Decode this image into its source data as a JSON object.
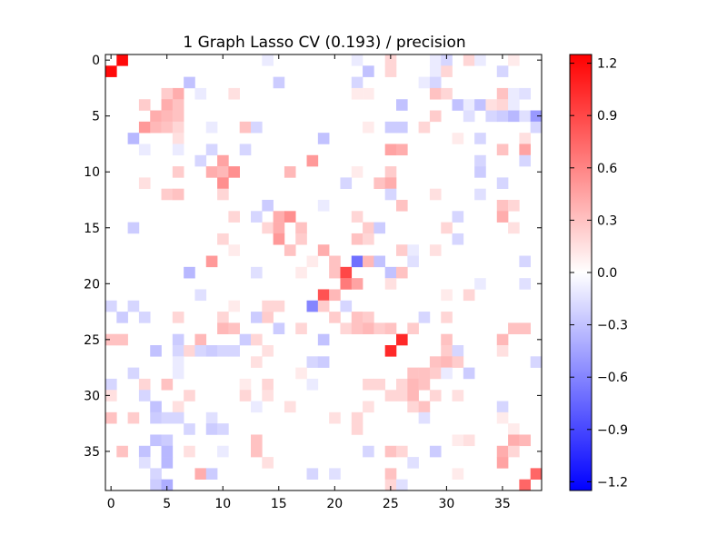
{
  "chart_data": {
    "type": "heatmap",
    "title": "1 Graph Lasso CV (0.193) / precision",
    "xlabel": "",
    "ylabel": "",
    "rows": 39,
    "cols": 39,
    "x_ticks": [
      0,
      5,
      10,
      15,
      20,
      25,
      30,
      35
    ],
    "y_ticks": [
      0,
      5,
      10,
      15,
      20,
      25,
      30,
      35
    ],
    "x_tick_labels": [
      "0",
      "5",
      "10",
      "15",
      "20",
      "25",
      "30",
      "35"
    ],
    "y_tick_labels": [
      "0",
      "5",
      "10",
      "15",
      "20",
      "25",
      "30",
      "35"
    ],
    "colormap": "bwr",
    "vmin": -1.25,
    "vmax": 1.25,
    "colorbar": {
      "ticks": [
        1.2,
        0.9,
        0.6,
        0.3,
        0.0,
        -0.3,
        -0.6,
        -0.9,
        -1.2
      ],
      "tick_labels": [
        "1.2",
        "0.9",
        "0.6",
        "0.3",
        "0.0",
        "−0.3",
        "−0.6",
        "−0.9",
        "−1.2"
      ],
      "color_high": "#ff0000",
      "color_mid": "#ffffff",
      "color_low": "#0000ff"
    },
    "grid": false,
    "default_value": 0.0,
    "cells": [
      [
        0,
        1,
        1.2
      ],
      [
        1,
        0,
        1.2
      ],
      [
        0,
        14,
        -0.1
      ],
      [
        0,
        22,
        -0.1
      ],
      [
        0,
        25,
        0.2
      ],
      [
        0,
        29,
        -0.1
      ],
      [
        0,
        30,
        -0.2
      ],
      [
        0,
        32,
        0.2
      ],
      [
        0,
        33,
        -0.1
      ],
      [
        0,
        36,
        0.1
      ],
      [
        1,
        23,
        -0.3
      ],
      [
        1,
        25,
        0.2
      ],
      [
        1,
        29,
        -0.1
      ],
      [
        1,
        30,
        0.2
      ],
      [
        1,
        35,
        -0.2
      ],
      [
        2,
        7,
        -0.3
      ],
      [
        2,
        15,
        -0.25
      ],
      [
        2,
        22,
        -0.2
      ],
      [
        2,
        28,
        -0.1
      ],
      [
        2,
        29,
        -0.2
      ],
      [
        3,
        6,
        0.4
      ],
      [
        3,
        5,
        0.25
      ],
      [
        3,
        8,
        -0.1
      ],
      [
        3,
        11,
        0.15
      ],
      [
        3,
        22,
        0.1
      ],
      [
        3,
        23,
        0.1
      ],
      [
        3,
        29,
        0.3
      ],
      [
        3,
        30,
        0.2
      ],
      [
        3,
        35,
        0.3
      ],
      [
        3,
        36,
        -0.1
      ],
      [
        3,
        37,
        -0.15
      ],
      [
        4,
        3,
        0.25
      ],
      [
        4,
        5,
        0.4
      ],
      [
        4,
        6,
        0.3
      ],
      [
        4,
        26,
        -0.3
      ],
      [
        4,
        31,
        -0.3
      ],
      [
        4,
        32,
        -0.1
      ],
      [
        4,
        33,
        -0.3
      ],
      [
        4,
        34,
        0.15
      ],
      [
        4,
        35,
        0.2
      ],
      [
        4,
        36,
        -0.1
      ],
      [
        5,
        4,
        0.4
      ],
      [
        5,
        5,
        0.35
      ],
      [
        5,
        6,
        0.3
      ],
      [
        5,
        29,
        0.25
      ],
      [
        5,
        32,
        -0.15
      ],
      [
        5,
        34,
        -0.2
      ],
      [
        5,
        35,
        -0.25
      ],
      [
        5,
        36,
        -0.35
      ],
      [
        5,
        37,
        -0.15
      ],
      [
        5,
        38,
        -0.5
      ],
      [
        6,
        3,
        0.5
      ],
      [
        6,
        4,
        0.35
      ],
      [
        6,
        5,
        0.3
      ],
      [
        6,
        6,
        0.2
      ],
      [
        6,
        9,
        -0.1
      ],
      [
        6,
        12,
        0.3
      ],
      [
        6,
        13,
        -0.2
      ],
      [
        6,
        23,
        0.1
      ],
      [
        6,
        25,
        -0.25
      ],
      [
        6,
        26,
        -0.25
      ],
      [
        6,
        28,
        0.2
      ],
      [
        6,
        38,
        -0.2
      ],
      [
        7,
        2,
        -0.35
      ],
      [
        7,
        6,
        0.15
      ],
      [
        7,
        19,
        -0.3
      ],
      [
        7,
        31,
        0.1
      ],
      [
        7,
        33,
        -0.2
      ],
      [
        7,
        37,
        0.15
      ],
      [
        8,
        3,
        -0.1
      ],
      [
        8,
        6,
        -0.1
      ],
      [
        8,
        9,
        -0.2
      ],
      [
        8,
        12,
        -0.2
      ],
      [
        8,
        25,
        0.45
      ],
      [
        8,
        26,
        0.4
      ],
      [
        8,
        35,
        0.3
      ],
      [
        8,
        37,
        0.45
      ],
      [
        9,
        8,
        -0.2
      ],
      [
        9,
        10,
        0.45
      ],
      [
        9,
        18,
        0.5
      ],
      [
        9,
        33,
        -0.2
      ],
      [
        9,
        37,
        -0.2
      ],
      [
        10,
        6,
        0.25
      ],
      [
        10,
        9,
        0.4
      ],
      [
        10,
        10,
        0.35
      ],
      [
        10,
        11,
        0.55
      ],
      [
        10,
        16,
        0.35
      ],
      [
        10,
        22,
        0.1
      ],
      [
        10,
        25,
        0.25
      ],
      [
        10,
        33,
        -0.25
      ],
      [
        11,
        3,
        0.15
      ],
      [
        11,
        10,
        0.55
      ],
      [
        11,
        21,
        -0.2
      ],
      [
        11,
        24,
        0.3
      ],
      [
        11,
        25,
        0.4
      ],
      [
        11,
        35,
        -0.2
      ],
      [
        12,
        5,
        0.25
      ],
      [
        12,
        6,
        0.3
      ],
      [
        12,
        10,
        0.2
      ],
      [
        12,
        25,
        -0.2
      ],
      [
        12,
        29,
        0.15
      ],
      [
        12,
        33,
        -0.15
      ],
      [
        13,
        14,
        -0.25
      ],
      [
        13,
        19,
        -0.1
      ],
      [
        13,
        26,
        0.3
      ],
      [
        13,
        35,
        0.3
      ],
      [
        13,
        36,
        0.2
      ],
      [
        14,
        11,
        0.2
      ],
      [
        14,
        13,
        -0.2
      ],
      [
        14,
        15,
        0.4
      ],
      [
        14,
        16,
        0.55
      ],
      [
        14,
        22,
        0.2
      ],
      [
        14,
        31,
        -0.2
      ],
      [
        14,
        35,
        0.4
      ],
      [
        15,
        2,
        -0.25
      ],
      [
        15,
        14,
        0.2
      ],
      [
        15,
        15,
        0.4
      ],
      [
        15,
        17,
        0.3
      ],
      [
        15,
        23,
        0.25
      ],
      [
        15,
        24,
        -0.25
      ],
      [
        15,
        30,
        0.2
      ],
      [
        15,
        36,
        0.15
      ],
      [
        16,
        10,
        0.2
      ],
      [
        16,
        15,
        0.5
      ],
      [
        16,
        17,
        0.25
      ],
      [
        16,
        22,
        0.3
      ],
      [
        16,
        23,
        0.2
      ],
      [
        16,
        31,
        -0.2
      ],
      [
        17,
        11,
        0.1
      ],
      [
        17,
        16,
        0.3
      ],
      [
        17,
        19,
        0.4
      ],
      [
        17,
        26,
        0.25
      ],
      [
        17,
        27,
        -0.1
      ],
      [
        17,
        29,
        0.15
      ],
      [
        18,
        9,
        0.5
      ],
      [
        18,
        18,
        0.1
      ],
      [
        18,
        20,
        0.3
      ],
      [
        18,
        22,
        -0.7
      ],
      [
        18,
        23,
        0.35
      ],
      [
        18,
        24,
        -0.3
      ],
      [
        18,
        27,
        -0.15
      ],
      [
        18,
        37,
        -0.2
      ],
      [
        19,
        7,
        -0.35
      ],
      [
        19,
        13,
        -0.15
      ],
      [
        19,
        17,
        0.1
      ],
      [
        19,
        20,
        0.3
      ],
      [
        19,
        21,
        0.9
      ],
      [
        19,
        25,
        -0.3
      ],
      [
        19,
        26,
        0.3
      ],
      [
        20,
        21,
        0.65
      ],
      [
        20,
        22,
        0.45
      ],
      [
        20,
        25,
        0.15
      ],
      [
        20,
        33,
        -0.1
      ],
      [
        20,
        37,
        -0.15
      ],
      [
        21,
        8,
        -0.15
      ],
      [
        21,
        19,
        0.85
      ],
      [
        21,
        20,
        0.35
      ],
      [
        21,
        30,
        0.1
      ],
      [
        21,
        32,
        0.2
      ],
      [
        22,
        0,
        -0.2
      ],
      [
        22,
        2,
        -0.2
      ],
      [
        22,
        11,
        0.1
      ],
      [
        22,
        14,
        0.2
      ],
      [
        22,
        15,
        0.2
      ],
      [
        22,
        18,
        -0.6
      ],
      [
        22,
        19,
        0.25
      ],
      [
        22,
        21,
        -0.2
      ],
      [
        23,
        1,
        -0.25
      ],
      [
        23,
        3,
        -0.2
      ],
      [
        23,
        6,
        0.2
      ],
      [
        23,
        10,
        0.2
      ],
      [
        23,
        13,
        -0.25
      ],
      [
        23,
        14,
        0.25
      ],
      [
        23,
        20,
        0.25
      ],
      [
        23,
        22,
        0.3
      ],
      [
        23,
        23,
        0.25
      ],
      [
        23,
        28,
        -0.2
      ],
      [
        23,
        30,
        0.2
      ],
      [
        24,
        10,
        0.35
      ],
      [
        24,
        11,
        0.3
      ],
      [
        24,
        15,
        -0.25
      ],
      [
        24,
        17,
        0.2
      ],
      [
        24,
        21,
        0.2
      ],
      [
        24,
        22,
        0.3
      ],
      [
        24,
        23,
        0.35
      ],
      [
        24,
        24,
        0.25
      ],
      [
        24,
        25,
        0.3
      ],
      [
        24,
        27,
        0.25
      ],
      [
        24,
        36,
        0.3
      ],
      [
        24,
        37,
        0.3
      ],
      [
        25,
        0,
        0.3
      ],
      [
        25,
        1,
        0.3
      ],
      [
        25,
        6,
        -0.25
      ],
      [
        25,
        8,
        0.35
      ],
      [
        25,
        12,
        -0.25
      ],
      [
        25,
        13,
        0.2
      ],
      [
        25,
        19,
        -0.3
      ],
      [
        25,
        26,
        1.05
      ],
      [
        25,
        30,
        0.3
      ],
      [
        25,
        35,
        0.35
      ],
      [
        26,
        4,
        -0.3
      ],
      [
        26,
        6,
        -0.2
      ],
      [
        26,
        7,
        0.2
      ],
      [
        26,
        8,
        -0.2
      ],
      [
        26,
        9,
        -0.25
      ],
      [
        26,
        10,
        -0.2
      ],
      [
        26,
        11,
        -0.2
      ],
      [
        26,
        14,
        0.15
      ],
      [
        26,
        25,
        1.05
      ],
      [
        26,
        30,
        0.25
      ],
      [
        26,
        31,
        -0.2
      ],
      [
        26,
        35,
        0.15
      ],
      [
        27,
        6,
        -0.1
      ],
      [
        27,
        13,
        0.15
      ],
      [
        27,
        18,
        -0.2
      ],
      [
        27,
        19,
        -0.25
      ],
      [
        27,
        29,
        0.3
      ],
      [
        27,
        30,
        0.35
      ],
      [
        27,
        31,
        0.25
      ],
      [
        27,
        38,
        -0.2
      ],
      [
        28,
        2,
        -0.2
      ],
      [
        28,
        6,
        -0.1
      ],
      [
        28,
        17,
        0.1
      ],
      [
        28,
        27,
        0.3
      ],
      [
        28,
        28,
        0.3
      ],
      [
        28,
        29,
        0.25
      ],
      [
        28,
        30,
        -0.1
      ],
      [
        28,
        32,
        -0.25
      ],
      [
        29,
        0,
        -0.2
      ],
      [
        29,
        3,
        0.2
      ],
      [
        29,
        5,
        0.3
      ],
      [
        29,
        12,
        0.1
      ],
      [
        29,
        14,
        0.2
      ],
      [
        29,
        18,
        -0.1
      ],
      [
        29,
        23,
        0.2
      ],
      [
        29,
        24,
        0.2
      ],
      [
        29,
        26,
        0.2
      ],
      [
        29,
        27,
        0.35
      ],
      [
        29,
        28,
        0.3
      ],
      [
        30,
        0,
        0.15
      ],
      [
        30,
        3,
        -0.2
      ],
      [
        30,
        7,
        0.2
      ],
      [
        30,
        12,
        0.2
      ],
      [
        30,
        14,
        0.15
      ],
      [
        30,
        25,
        0.2
      ],
      [
        30,
        26,
        0.2
      ],
      [
        30,
        27,
        0.35
      ],
      [
        30,
        29,
        0.2
      ],
      [
        30,
        31,
        0.15
      ],
      [
        31,
        4,
        -0.3
      ],
      [
        31,
        6,
        0.15
      ],
      [
        31,
        13,
        -0.1
      ],
      [
        31,
        16,
        0.15
      ],
      [
        31,
        23,
        0.15
      ],
      [
        31,
        27,
        0.2
      ],
      [
        31,
        28,
        0.3
      ],
      [
        31,
        35,
        -0.2
      ],
      [
        32,
        0,
        0.3
      ],
      [
        32,
        2,
        0.25
      ],
      [
        32,
        4,
        -0.25
      ],
      [
        32,
        5,
        -0.2
      ],
      [
        32,
        6,
        -0.2
      ],
      [
        32,
        9,
        -0.15
      ],
      [
        32,
        20,
        0.15
      ],
      [
        32,
        22,
        0.2
      ],
      [
        32,
        28,
        -0.15
      ],
      [
        32,
        35,
        0.1
      ],
      [
        33,
        7,
        -0.2
      ],
      [
        33,
        9,
        -0.25
      ],
      [
        33,
        10,
        -0.2
      ],
      [
        33,
        22,
        0.2
      ],
      [
        33,
        36,
        0.1
      ],
      [
        34,
        4,
        -0.3
      ],
      [
        34,
        5,
        -0.25
      ],
      [
        34,
        13,
        0.3
      ],
      [
        34,
        31,
        0.1
      ],
      [
        34,
        32,
        0.15
      ],
      [
        34,
        36,
        0.4
      ],
      [
        34,
        37,
        0.35
      ],
      [
        35,
        1,
        0.3
      ],
      [
        35,
        3,
        -0.3
      ],
      [
        35,
        5,
        -0.35
      ],
      [
        35,
        7,
        0.15
      ],
      [
        35,
        10,
        -0.1
      ],
      [
        35,
        13,
        0.3
      ],
      [
        35,
        23,
        -0.2
      ],
      [
        35,
        25,
        0.3
      ],
      [
        35,
        26,
        0.2
      ],
      [
        35,
        29,
        -0.25
      ],
      [
        35,
        35,
        0.4
      ],
      [
        35,
        36,
        0.2
      ],
      [
        36,
        3,
        -0.15
      ],
      [
        36,
        5,
        -0.35
      ],
      [
        36,
        14,
        0.15
      ],
      [
        36,
        27,
        -0.15
      ],
      [
        36,
        35,
        0.45
      ],
      [
        37,
        4,
        -0.2
      ],
      [
        37,
        8,
        0.4
      ],
      [
        37,
        9,
        -0.25
      ],
      [
        37,
        18,
        -0.2
      ],
      [
        37,
        20,
        -0.15
      ],
      [
        37,
        25,
        0.3
      ],
      [
        37,
        31,
        0.1
      ],
      [
        37,
        38,
        0.75
      ],
      [
        38,
        4,
        -0.25
      ],
      [
        38,
        5,
        -0.4
      ],
      [
        38,
        25,
        0.2
      ],
      [
        38,
        26,
        -0.15
      ],
      [
        38,
        37,
        0.75
      ]
    ]
  }
}
